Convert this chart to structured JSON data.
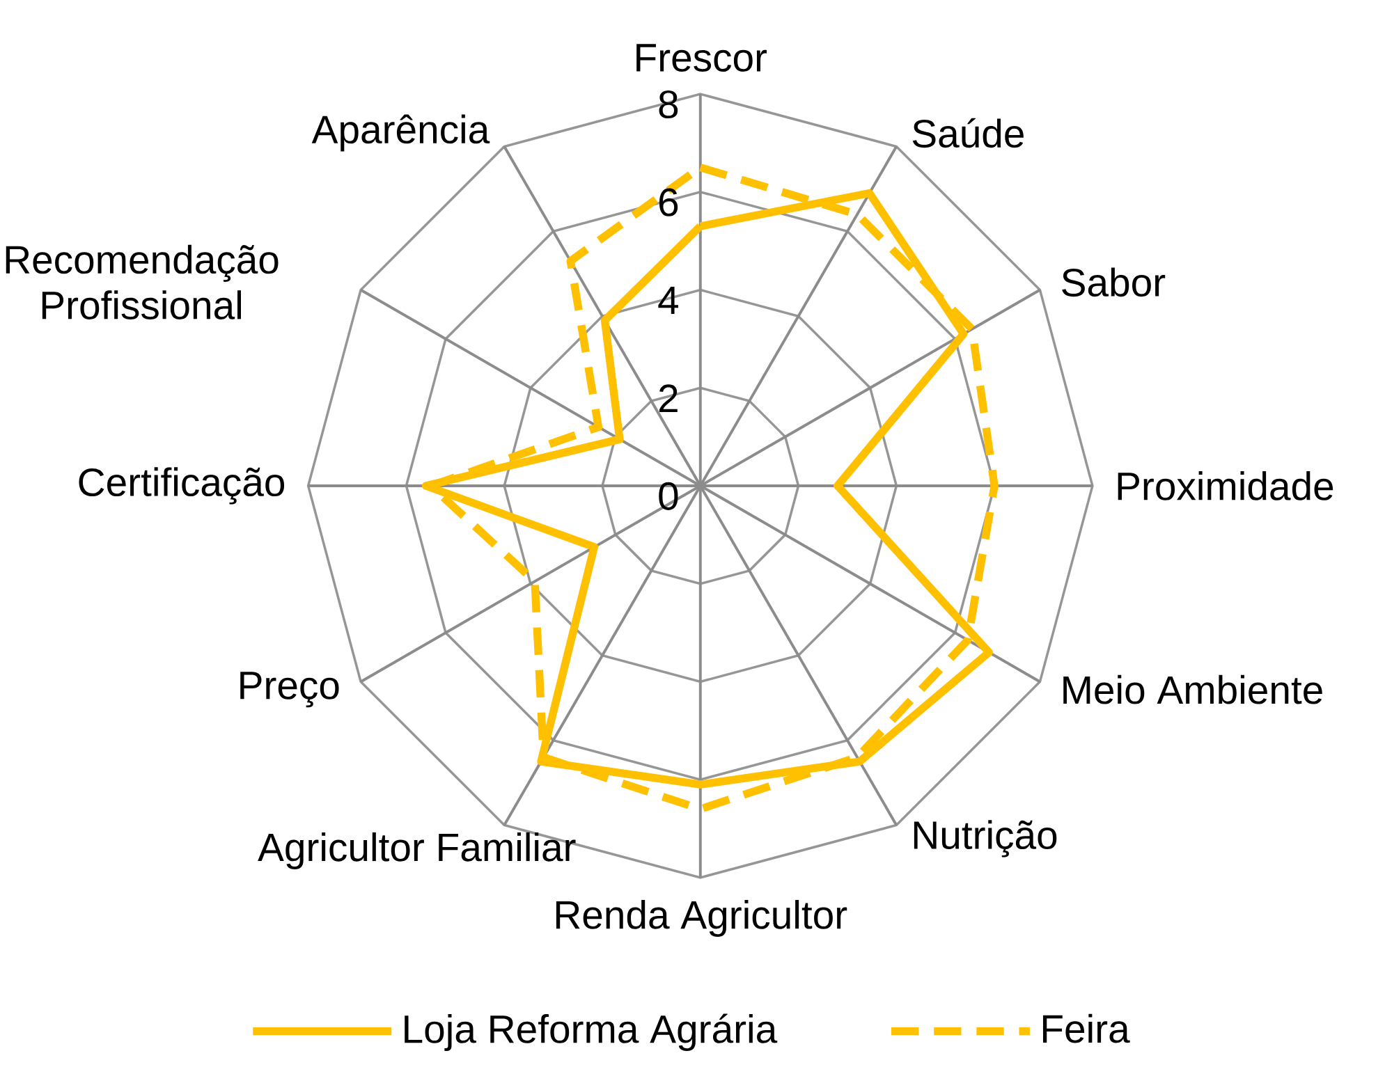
{
  "chart_data": {
    "type": "radar",
    "categories": [
      "Frescor",
      "Saúde",
      "Sabor",
      "Proximidade",
      "Meio Ambiente",
      "Nutrição",
      "Renda Agricultor",
      "Agricultor Familiar",
      "Preço",
      "Certificação",
      "Recomendação Profissional",
      "Aparência"
    ],
    "series": [
      {
        "name": "Loja Reforma Agrária",
        "color": "#ffc000",
        "line_style": "solid",
        "values": [
          5.3,
          6.9,
          6.2,
          2.8,
          6.8,
          6.5,
          6.1,
          6.5,
          2.5,
          5.6,
          1.9,
          3.9
        ]
      },
      {
        "name": "Feira",
        "color": "#ffc000",
        "line_style": "dashed",
        "values": [
          6.5,
          6.4,
          6.4,
          6.0,
          6.3,
          6.4,
          6.6,
          6.4,
          3.9,
          5.5,
          2.4,
          5.3
        ]
      }
    ],
    "ylim": [
      0,
      8
    ],
    "yticks": [
      0,
      2,
      4,
      6,
      8
    ],
    "grid": true,
    "legend": "bottom"
  }
}
